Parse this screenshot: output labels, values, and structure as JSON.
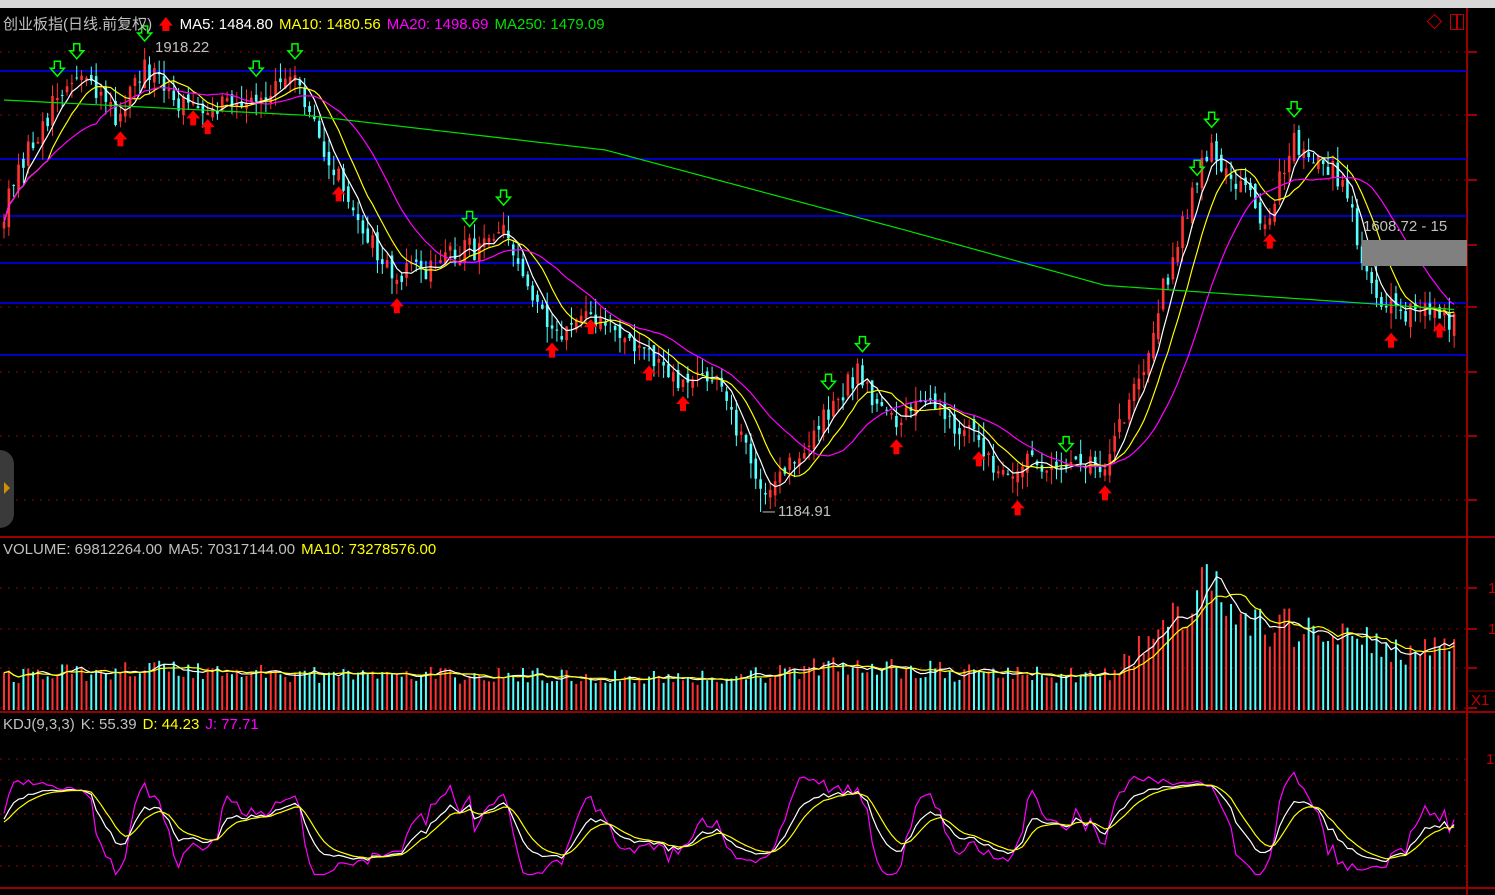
{
  "header": {
    "title": "创业板指(日线.前复权)",
    "ma5": "MA5: 1484.80",
    "ma10": "MA10: 1480.56",
    "ma20": "MA20: 1498.69",
    "ma250": "MA250: 1479.09",
    "high_label": "1918.22",
    "low_label": "1184.91",
    "range_label": "1608.72 - 15"
  },
  "volume_header": {
    "volume": "VOLUME: 69812264.00",
    "ma5": "MA5: 70317144.00",
    "ma10": "MA10: 73278576.00",
    "axis_labels": [
      "1",
      "1"
    ],
    "unit": "X1"
  },
  "kdj_header": {
    "name": "KDJ(9,3,3)",
    "k": "K: 55.39",
    "d": "D: 44.23",
    "j": "J: 77.71",
    "axis_label": "1"
  },
  "colors": {
    "up": "#ff3232",
    "down": "#54ffff",
    "ma5": "#ffffff",
    "ma10": "#ffff00",
    "ma20": "#ff00ff",
    "ma250": "#00e000",
    "grid": "#9a0000",
    "hline": "#0000ff"
  },
  "chart_data": {
    "type": "candlestick",
    "title": "创业板指(日线.前复权)",
    "ylim": [
      1160,
      1950
    ],
    "high": 1918.22,
    "low": 1184.91,
    "horizontal_levels": [
      1881.9,
      1742.8,
      1652.7,
      1578.4,
      1515.2,
      1433.0
    ],
    "close_path": [
      [
        0,
        1662
      ],
      [
        8,
        1804
      ],
      [
        15,
        1875
      ],
      [
        23,
        1812
      ],
      [
        29,
        1880
      ],
      [
        37,
        1828
      ],
      [
        47,
        1836
      ],
      [
        60,
        1860
      ],
      [
        68,
        1725
      ],
      [
        80,
        1551
      ],
      [
        93,
        1590
      ],
      [
        103,
        1622
      ],
      [
        112,
        1472
      ],
      [
        124,
        1488
      ],
      [
        140,
        1378
      ],
      [
        146,
        1409
      ],
      [
        156,
        1220
      ],
      [
        165,
        1283
      ],
      [
        176,
        1409
      ],
      [
        184,
        1314
      ],
      [
        189,
        1378
      ],
      [
        206,
        1252
      ],
      [
        219,
        1267
      ],
      [
        227,
        1252
      ],
      [
        235,
        1425
      ],
      [
        243,
        1646
      ],
      [
        248,
        1757
      ],
      [
        256,
        1701
      ],
      [
        260,
        1638
      ],
      [
        266,
        1773
      ],
      [
        276,
        1710
      ],
      [
        282,
        1536
      ],
      [
        289,
        1504
      ],
      [
        299,
        1488
      ]
    ],
    "ma250_path": [
      [
        0,
        1836
      ],
      [
        62,
        1812
      ],
      [
        124,
        1757
      ],
      [
        186,
        1630
      ],
      [
        227,
        1543
      ],
      [
        299,
        1505
      ]
    ],
    "volume_path": [
      [
        0,
        0.9
      ],
      [
        30,
        1.1
      ],
      [
        60,
        0.95
      ],
      [
        100,
        0.9
      ],
      [
        150,
        0.85
      ],
      [
        175,
        1.2
      ],
      [
        200,
        0.95
      ],
      [
        228,
        0.9
      ],
      [
        236,
        1.8
      ],
      [
        248,
        3.2
      ],
      [
        260,
        2.1
      ],
      [
        270,
        2.2
      ],
      [
        285,
        1.6
      ],
      [
        299,
        1.5
      ]
    ],
    "sell_signals": [
      11,
      15,
      29,
      52,
      60,
      96,
      103,
      170,
      177,
      219,
      246,
      249,
      266
    ],
    "buy_signals": [
      24,
      39,
      42,
      69,
      81,
      113,
      121,
      133,
      140,
      184,
      201,
      209,
      227,
      261,
      286,
      296
    ]
  }
}
